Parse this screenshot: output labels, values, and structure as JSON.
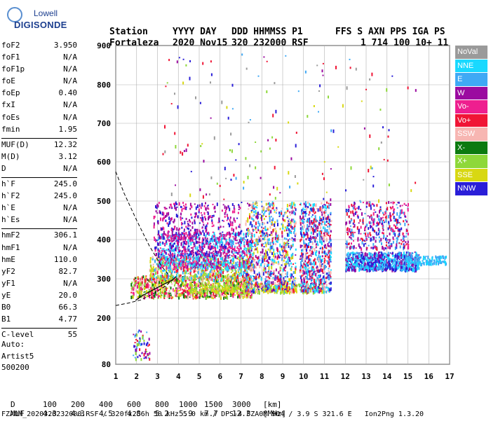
{
  "logo": {
    "line1": "Lowell",
    "line2": "DIGISONDE"
  },
  "header": {
    "labels": [
      "Station",
      "YYYY DAY",
      "DDD HHMMSS P1",
      "FFS S AXN PPS IGA PS"
    ],
    "values": [
      "Fortaleza",
      "2020 Nov15",
      "320 232000 RSF",
      "1 714 100 10+ 11"
    ]
  },
  "params": [
    {
      "k": "foF2",
      "v": "3.950"
    },
    {
      "k": "foF1",
      "v": "N/A"
    },
    {
      "k": "foF1p",
      "v": "N/A"
    },
    {
      "k": "foE",
      "v": "N/A"
    },
    {
      "k": "foEp",
      "v": "0.40"
    },
    {
      "k": "fxI",
      "v": "N/A"
    },
    {
      "k": "foEs",
      "v": "N/A"
    },
    {
      "k": "fmin",
      "v": "1.95"
    },
    {
      "k": "---",
      "v": ""
    },
    {
      "k": "MUF(D)",
      "v": "12.32"
    },
    {
      "k": "M(D)",
      "v": "3.12"
    },
    {
      "k": "D",
      "v": "N/A"
    },
    {
      "k": "---",
      "v": ""
    },
    {
      "k": "h`F",
      "v": "245.0"
    },
    {
      "k": "h`F2",
      "v": "245.0"
    },
    {
      "k": "h`E",
      "v": "N/A"
    },
    {
      "k": "h`Es",
      "v": "N/A"
    },
    {
      "k": "---",
      "v": ""
    },
    {
      "k": "hmF2",
      "v": "306.1"
    },
    {
      "k": "hmF1",
      "v": "N/A"
    },
    {
      "k": "hmE",
      "v": "110.0"
    },
    {
      "k": "yF2",
      "v": "82.7"
    },
    {
      "k": "yF1",
      "v": "N/A"
    },
    {
      "k": "yE",
      "v": "20.0"
    },
    {
      "k": "B0",
      "v": "66.3"
    },
    {
      "k": "B1",
      "v": "4.77"
    },
    {
      "k": "---",
      "v": ""
    },
    {
      "k": "C-level",
      "v": "55"
    }
  ],
  "auto": {
    "l1": "Auto:",
    "l2": "Artist5",
    "l3": "500200"
  },
  "legend": [
    {
      "label": "NoVal",
      "color": "#9a9a9a"
    },
    {
      "label": "NNE",
      "color": "#19d9ff"
    },
    {
      "label": "E",
      "color": "#3fa9f5"
    },
    {
      "label": "W",
      "color": "#9b0aa0"
    },
    {
      "label": "Vo-",
      "color": "#ee1f8f"
    },
    {
      "label": "Vo+",
      "color": "#f01535"
    },
    {
      "label": "SSW",
      "color": "#f7b6b2"
    },
    {
      "label": "X-",
      "color": "#0c7a10"
    },
    {
      "label": "X+",
      "color": "#8ed83a"
    },
    {
      "label": "SSE",
      "color": "#d8d812"
    },
    {
      "label": "NNW",
      "color": "#2a1ed8"
    }
  ],
  "chart_data": {
    "type": "scatter",
    "xlabel": "",
    "ylabel": "",
    "xlim": [
      1,
      17
    ],
    "ylim": [
      80,
      900
    ],
    "xticks": [
      1,
      2,
      3,
      4,
      5,
      6,
      7,
      8,
      9,
      10,
      11,
      12,
      13,
      14,
      15,
      16,
      17
    ],
    "yticks": [
      80,
      200,
      300,
      400,
      500,
      600,
      700,
      800,
      900
    ],
    "grid": true,
    "legend_position": "right",
    "clusters": [
      {
        "name": "F-trace low",
        "x": [
          1.7,
          7.5
        ],
        "y": [
          255,
          310
        ],
        "colors": [
          "#f01535",
          "#ee1f8f",
          "#f7b6b2",
          "#d8d812",
          "#0c7a10",
          "#8ed83a"
        ],
        "n": 900
      },
      {
        "name": "F-trace mid",
        "x": [
          2.6,
          7.5
        ],
        "y": [
          300,
          360
        ],
        "colors": [
          "#f01535",
          "#d8d812",
          "#8ed83a",
          "#3fa9f5",
          "#19d9ff",
          "#f7b6b2"
        ],
        "n": 700
      },
      {
        "name": "F-trace upper",
        "x": [
          3.0,
          7.5
        ],
        "y": [
          330,
          420
        ],
        "colors": [
          "#3fa9f5",
          "#19d9ff",
          "#9b0aa0",
          "#ee1f8f"
        ],
        "n": 700
      },
      {
        "name": "W spread",
        "x": [
          2.8,
          7.0
        ],
        "y": [
          360,
          500
        ],
        "colors": [
          "#9b0aa0",
          "#ee1f8f",
          "#2a1ed8"
        ],
        "n": 500
      },
      {
        "name": "SSE base",
        "x": [
          4.5,
          11.0
        ],
        "y": [
          268,
          290
        ],
        "colors": [
          "#d8d812",
          "#8ed83a"
        ],
        "n": 400
      },
      {
        "name": "Column 7-9",
        "x": [
          7.2,
          9.6
        ],
        "y": [
          270,
          500
        ],
        "colors": [
          "#3fa9f5",
          "#19d9ff",
          "#f01535",
          "#9b0aa0",
          "#f7b6b2",
          "#d8d812",
          "#2a1ed8"
        ],
        "n": 900
      },
      {
        "name": "Column 10-11",
        "x": [
          9.8,
          11.3
        ],
        "y": [
          270,
          500
        ],
        "colors": [
          "#3fa9f5",
          "#19d9ff",
          "#f01535",
          "#9b0aa0",
          "#f7b6b2",
          "#2a1ed8"
        ],
        "n": 700
      },
      {
        "name": "Band 12-15",
        "x": [
          12.0,
          15.5
        ],
        "y": [
          325,
          370
        ],
        "colors": [
          "#3fa9f5",
          "#19d9ff",
          "#2a1ed8",
          "#9b0aa0"
        ],
        "n": 800
      },
      {
        "name": "Band 12-15 upper",
        "x": [
          12.0,
          15.0
        ],
        "y": [
          380,
          500
        ],
        "colors": [
          "#9b0aa0",
          "#2a1ed8",
          "#f01535",
          "#ee1f8f",
          "#3fa9f5"
        ],
        "n": 400
      },
      {
        "name": "Band 15-17",
        "x": [
          15.0,
          16.8
        ],
        "y": [
          340,
          360
        ],
        "colors": [
          "#3fa9f5",
          "#19d9ff"
        ],
        "n": 120
      },
      {
        "name": "Scatter high",
        "x": [
          3.0,
          15.5
        ],
        "y": [
          500,
          880
        ],
        "colors": [
          "#9a9a9a",
          "#d8d812",
          "#9b0aa0",
          "#f01535",
          "#3fa9f5",
          "#2a1ed8",
          "#8ed83a"
        ],
        "n": 160
      },
      {
        "name": "Low near 2",
        "x": [
          1.8,
          2.6
        ],
        "y": [
          95,
          170
        ],
        "colors": [
          "#9b0aa0",
          "#f01535",
          "#2a1ed8",
          "#3fa9f5",
          "#8ed83a"
        ],
        "n": 60
      }
    ],
    "profile_curve": [
      [
        1.95,
        245
      ],
      [
        2.3,
        258
      ],
      [
        2.8,
        272
      ],
      [
        3.3,
        286
      ],
      [
        3.7,
        296
      ],
      [
        3.9,
        306
      ]
    ],
    "profile_dashed": [
      [
        1.0,
        575
      ],
      [
        1.4,
        520
      ],
      [
        2.0,
        450
      ],
      [
        2.6,
        385
      ],
      [
        3.2,
        332
      ],
      [
        3.6,
        306
      ]
    ],
    "profile_dashed_low": [
      [
        1.0,
        232
      ],
      [
        1.6,
        238
      ],
      [
        2.2,
        246
      ],
      [
        2.8,
        262
      ],
      [
        3.4,
        282
      ],
      [
        3.9,
        306
      ]
    ]
  },
  "footer": {
    "d_label": "D",
    "d_values": [
      "100",
      "200",
      "400",
      "600",
      "800",
      "1000",
      "1500",
      "3000",
      "[km]"
    ],
    "muf_label": "MUF",
    "muf_values": [
      "4.3",
      "4.3",
      "4.5",
      "4.8",
      "5.2",
      "5.9",
      "7.7",
      "12.3",
      "[MHz]"
    ],
    "fileline": "FZA0M_2020320232000.RSF / 320fx256h 50 kHz 5.0 km / DPS-4 FZA0M 904 / 3.9 S 321.6 E   Ion2Png 1.3.20"
  }
}
